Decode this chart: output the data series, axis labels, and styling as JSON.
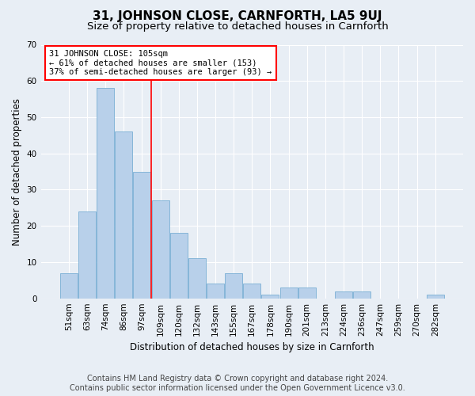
{
  "title": "31, JOHNSON CLOSE, CARNFORTH, LA5 9UJ",
  "subtitle": "Size of property relative to detached houses in Carnforth",
  "xlabel": "Distribution of detached houses by size in Carnforth",
  "ylabel": "Number of detached properties",
  "bar_labels": [
    "51sqm",
    "63sqm",
    "74sqm",
    "86sqm",
    "97sqm",
    "109sqm",
    "120sqm",
    "132sqm",
    "143sqm",
    "155sqm",
    "167sqm",
    "178sqm",
    "190sqm",
    "201sqm",
    "213sqm",
    "224sqm",
    "236sqm",
    "247sqm",
    "259sqm",
    "270sqm",
    "282sqm"
  ],
  "bar_values": [
    7,
    24,
    58,
    46,
    35,
    27,
    18,
    11,
    4,
    7,
    4,
    1,
    3,
    3,
    0,
    2,
    2,
    0,
    0,
    0,
    1
  ],
  "bar_color": "#b8d0ea",
  "bar_edgecolor": "#7aafd4",
  "bar_linewidth": 0.6,
  "vline_color": "red",
  "vline_linewidth": 1.2,
  "vline_pos": 4.5,
  "annotation_text": "31 JOHNSON CLOSE: 105sqm\n← 61% of detached houses are smaller (153)\n37% of semi-detached houses are larger (93) →",
  "annotation_box_edgecolor": "red",
  "annotation_fontsize": 7.5,
  "ylim": [
    0,
    70
  ],
  "yticks": [
    0,
    10,
    20,
    30,
    40,
    50,
    60,
    70
  ],
  "background_color": "#e8eef5",
  "plot_bg_color": "#e8eef5",
  "title_fontsize": 11,
  "subtitle_fontsize": 9.5,
  "xlabel_fontsize": 8.5,
  "ylabel_fontsize": 8.5,
  "tick_fontsize": 7.5,
  "footer_line1": "Contains HM Land Registry data © Crown copyright and database right 2024.",
  "footer_line2": "Contains public sector information licensed under the Open Government Licence v3.0.",
  "footer_fontsize": 7.0
}
